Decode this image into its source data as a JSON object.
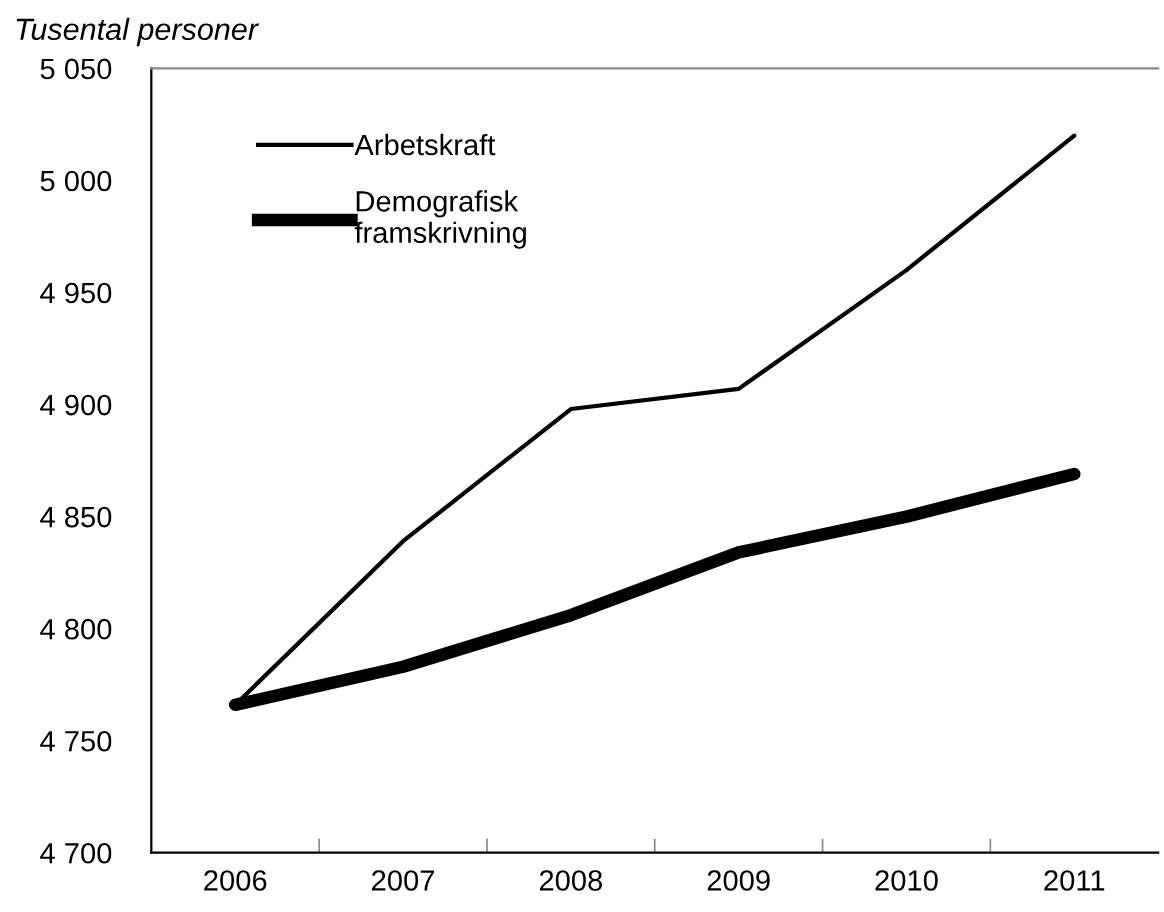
{
  "chart_data": {
    "type": "line",
    "ylabel": "Tusental personer",
    "categories": [
      "2006",
      "2007",
      "2008",
      "2009",
      "2010",
      "2011"
    ],
    "series": [
      {
        "name": "Arbetskraft",
        "color": "#000000",
        "values": [
          4766,
          4839,
          4898,
          4907,
          4960,
          5020
        ]
      },
      {
        "name": "Demografisk\nframskrivning",
        "color": "#000000",
        "values": [
          4766,
          4783,
          4806,
          4834,
          4850,
          4869
        ]
      }
    ],
    "ylim": [
      4700,
      5050
    ],
    "yticks": [
      {
        "value": 4700,
        "label": "4 700"
      },
      {
        "value": 4750,
        "label": "4 750"
      },
      {
        "value": 4800,
        "label": "4 800"
      },
      {
        "value": 4850,
        "label": "4 850"
      },
      {
        "value": 4900,
        "label": "4 900"
      },
      {
        "value": 4950,
        "label": "4 950"
      },
      {
        "value": 5000,
        "label": "5 000"
      },
      {
        "value": 5050,
        "label": "5 050"
      }
    ],
    "grid": false,
    "legend": "top left",
    "marker": "none",
    "line_style": "solid"
  }
}
